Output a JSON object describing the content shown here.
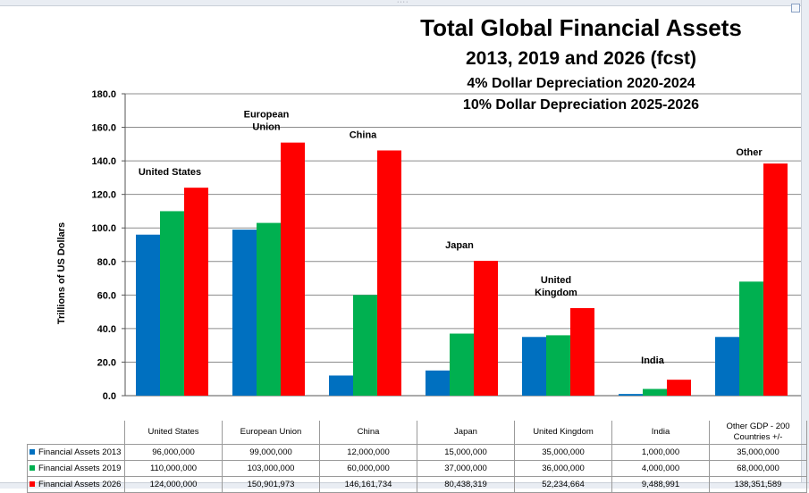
{
  "window": {
    "grip_glyph": "····"
  },
  "titles": {
    "line1": "Total Global Financial Assets",
    "line2": "2013, 2019 and 2026 (fcst)",
    "line3": "4% Dollar Depreciation 2020-2024",
    "line4": "10% Dollar Depreciation 2025-2026"
  },
  "chart_data": {
    "type": "bar",
    "ylabel": "Trillions of US Dollars",
    "ylim": [
      0,
      180
    ],
    "yticks": [
      "0.0",
      "20.0",
      "40.0",
      "60.0",
      "80.0",
      "100.0",
      "120.0",
      "140.0",
      "160.0",
      "180.0"
    ],
    "grid": true,
    "categories": [
      "United States",
      "European Union",
      "China",
      "Japan",
      "United Kingdom",
      "India",
      "Other GDP - 200 Countries +/-"
    ],
    "annotations": [
      "United States",
      "European Union",
      "China",
      "Japan",
      "United Kingdom",
      "India",
      "Other"
    ],
    "series": [
      {
        "name": "Financial Assets 2013",
        "color": "#0070c0",
        "values": [
          96.0,
          99.0,
          12.0,
          15.0,
          35.0,
          1.0,
          35.0
        ],
        "table": [
          "96,000,000",
          "99,000,000",
          "12,000,000",
          "15,000,000",
          "35,000,000",
          "1,000,000",
          "35,000,000"
        ]
      },
      {
        "name": "Financial Assets 2019",
        "color": "#00b050",
        "values": [
          110.0,
          103.0,
          60.0,
          37.0,
          36.0,
          4.0,
          68.0
        ],
        "table": [
          "110,000,000",
          "103,000,000",
          "60,000,000",
          "37,000,000",
          "36,000,000",
          "4,000,000",
          "68,000,000"
        ]
      },
      {
        "name": "Financial Assets 2026",
        "color": "#ff0000",
        "values": [
          124.0,
          150.9,
          146.2,
          80.4,
          52.2,
          9.5,
          138.4
        ],
        "table": [
          "124,000,000",
          "150,901,973",
          "146,161,734",
          "80,438,319",
          "52,234,664",
          "9,488,991",
          "138,351,589"
        ]
      }
    ]
  }
}
